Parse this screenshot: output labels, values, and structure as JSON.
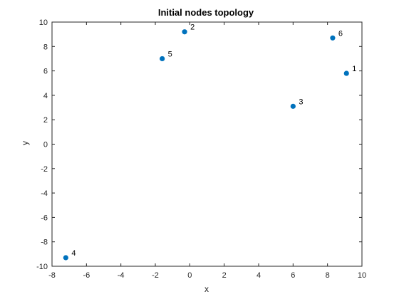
{
  "chart_data": {
    "type": "scatter",
    "title": "Initial nodes topology",
    "xlabel": "x",
    "ylabel": "y",
    "xlim": [
      -8,
      10
    ],
    "ylim": [
      -10,
      10
    ],
    "xticks": [
      -8,
      -6,
      -4,
      -2,
      0,
      2,
      4,
      6,
      8,
      10
    ],
    "yticks": [
      -10,
      -8,
      -6,
      -4,
      -2,
      0,
      2,
      4,
      6,
      8,
      10
    ],
    "grid": false,
    "marker_color": "#0072BD",
    "points": [
      {
        "label": "1",
        "x": 9.1,
        "y": 5.8
      },
      {
        "label": "2",
        "x": -0.3,
        "y": 9.2
      },
      {
        "label": "3",
        "x": 6.0,
        "y": 3.1
      },
      {
        "label": "4",
        "x": -7.2,
        "y": -9.3
      },
      {
        "label": "5",
        "x": -1.6,
        "y": 7.0
      },
      {
        "label": "6",
        "x": 8.3,
        "y": 8.7
      }
    ]
  }
}
